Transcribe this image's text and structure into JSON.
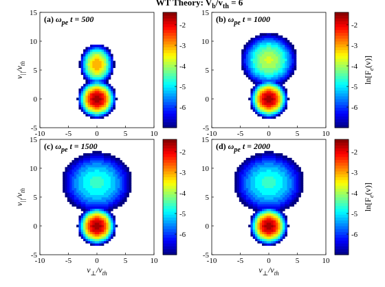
{
  "figure": {
    "title_main": "WT Theory: V",
    "title_sub_b": "b",
    "title_slash": "/v",
    "title_sub_th": "th",
    "title_tail": " = 6"
  },
  "chart_data": [
    {
      "type": "heatmap",
      "panel_label": "(a)",
      "omega": "ω",
      "omega_sub": "pe",
      "time_text": "t = 500",
      "t": 500,
      "xlim": [
        -10,
        10
      ],
      "ylim": [
        -5,
        15
      ],
      "xticks": [
        "-10",
        "-5",
        "0",
        "5",
        "10"
      ],
      "yticks": [
        "-5",
        "0",
        "5",
        "10",
        "15"
      ],
      "xlabel_shown": false,
      "ylabel_shown": true,
      "colorbar_ticks": [
        "-2",
        "-3",
        "-4",
        "-5",
        "-6"
      ],
      "colorbar_range": [
        -7,
        -1.4
      ],
      "colorbar_label_shown": false
    },
    {
      "type": "heatmap",
      "panel_label": "(b)",
      "omega": "ω",
      "omega_sub": "pe",
      "time_text": "t = 1000",
      "t": 1000,
      "xlim": [
        -10,
        10
      ],
      "ylim": [
        -5,
        15
      ],
      "xticks": [
        "-10",
        "-5",
        "0",
        "5",
        "10"
      ],
      "yticks": [
        "-5",
        "0",
        "5",
        "10",
        "15"
      ],
      "xlabel_shown": false,
      "ylabel_shown": false,
      "colorbar_ticks": [
        "-2",
        "-3",
        "-4",
        "-5",
        "-6"
      ],
      "colorbar_range": [
        -7,
        -1.4
      ],
      "colorbar_label_shown": true
    },
    {
      "type": "heatmap",
      "panel_label": "(c)",
      "omega": "ω",
      "omega_sub": "pe",
      "time_text": "t = 1500",
      "t": 1500,
      "xlim": [
        -10,
        10
      ],
      "ylim": [
        -5,
        15
      ],
      "xticks": [
        "-10",
        "-5",
        "0",
        "5",
        "10"
      ],
      "yticks": [
        "-5",
        "0",
        "5",
        "10",
        "15"
      ],
      "xlabel_shown": true,
      "ylabel_shown": true,
      "colorbar_ticks": [
        "-2",
        "-3",
        "-4",
        "-5",
        "-6"
      ],
      "colorbar_range": [
        -7,
        -1.4
      ],
      "colorbar_label_shown": false
    },
    {
      "type": "heatmap",
      "panel_label": "(d)",
      "omega": "ω",
      "omega_sub": "pe",
      "time_text": "t = 2000",
      "t": 2000,
      "xlim": [
        -10,
        10
      ],
      "ylim": [
        -5,
        15
      ],
      "xticks": [
        "-10",
        "-5",
        "0",
        "5",
        "10"
      ],
      "yticks": [
        "-5",
        "0",
        "5",
        "10",
        "15"
      ],
      "xlabel_shown": true,
      "ylabel_shown": false,
      "colorbar_ticks": [
        "-2",
        "-3",
        "-4",
        "-5",
        "-6"
      ],
      "colorbar_range": [
        -7,
        -1.4
      ],
      "colorbar_label_shown": true
    }
  ],
  "axis_labels": {
    "x_main": "v",
    "x_sub": "⊥",
    "x_div": "/v",
    "x_sub2": "th",
    "y_main": "v",
    "y_sub": "||",
    "y_div": "/v",
    "y_sub2": "th",
    "cb_main": "ln[F",
    "cb_sub": "e",
    "cb_tail": "(v)]"
  }
}
